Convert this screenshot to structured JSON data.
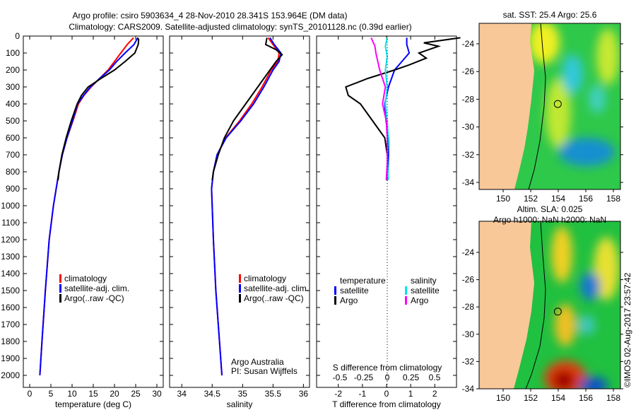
{
  "title_line1": "Argo profile: csiro 5903634_4 28-Nov-2010 28.341S 153.964E (DM data)",
  "title_line2": "Climatology: CARS2009. Satellite-adjusted climatology: synTS_20101128.nc (0.39d earlier)",
  "colors": {
    "climatology": "#ff0000",
    "satellite": "#0000ff",
    "argo": "#000000",
    "sal_satellite": "#00e5ee",
    "sal_argo": "#ff00ff",
    "land": "#f9c898"
  },
  "chart_data": [
    {
      "type": "line",
      "xlabel": "temperature (deg C)",
      "ylabel": "",
      "xlim": [
        -1.5,
        31.5
      ],
      "ylim": [
        2000,
        0
      ],
      "xticks": [
        0,
        5,
        10,
        15,
        20,
        25,
        30
      ],
      "yticks": [
        0,
        100,
        200,
        300,
        400,
        500,
        600,
        700,
        800,
        900,
        1000,
        1100,
        1200,
        1300,
        1400,
        1500,
        1600,
        1700,
        1800,
        1900,
        2000
      ],
      "legend": [
        "climatology",
        "satellite-adj. clim.",
        "Argo(..raw -QC)"
      ],
      "series": [
        {
          "name": "climatology",
          "color": "#ff0000",
          "points": [
            [
              24.5,
              10
            ],
            [
              23,
              50
            ],
            [
              21.5,
              100
            ],
            [
              20,
              150
            ],
            [
              18.5,
              200
            ],
            [
              16.5,
              250
            ],
            [
              14.5,
              300
            ],
            [
              12.8,
              350
            ],
            [
              11.5,
              400
            ],
            [
              10.2,
              500
            ],
            [
              8.8,
              600
            ],
            [
              7.7,
              700
            ],
            [
              6.9,
              800
            ],
            [
              5.6,
              1000
            ],
            [
              4.6,
              1200
            ],
            [
              3.7,
              1500
            ],
            [
              2.9,
              1800
            ],
            [
              2.4,
              2000
            ]
          ]
        },
        {
          "name": "satellite-adj. clim.",
          "color": "#0000ff",
          "points": [
            [
              25.5,
              10
            ],
            [
              24.6,
              50
            ],
            [
              22.5,
              100
            ],
            [
              20.5,
              150
            ],
            [
              18.8,
              200
            ],
            [
              16.5,
              250
            ],
            [
              14.3,
              300
            ],
            [
              12.7,
              350
            ],
            [
              11.3,
              400
            ],
            [
              10.1,
              500
            ],
            [
              8.8,
              600
            ],
            [
              7.7,
              700
            ],
            [
              6.9,
              800
            ],
            [
              5.6,
              1000
            ],
            [
              4.6,
              1200
            ],
            [
              3.7,
              1500
            ],
            [
              2.9,
              1800
            ],
            [
              2.4,
              2000
            ]
          ]
        },
        {
          "name": "Argo(..raw -QC)",
          "color": "#000000",
          "points": [
            [
              25.4,
              10
            ],
            [
              25.7,
              20
            ],
            [
              25.6,
              50
            ],
            [
              24.8,
              100
            ],
            [
              22.5,
              150
            ],
            [
              20,
              200
            ],
            [
              16.8,
              250
            ],
            [
              13.8,
              300
            ],
            [
              12.2,
              350
            ],
            [
              11.2,
              400
            ],
            [
              9.8,
              500
            ],
            [
              8.6,
              600
            ],
            [
              7.6,
              700
            ],
            [
              6.9,
              800
            ],
            [
              6.7,
              850
            ]
          ]
        }
      ]
    },
    {
      "type": "line",
      "xlabel": "salinity",
      "xlim": [
        33.8,
        36.1
      ],
      "ylim": [
        2000,
        0
      ],
      "xticks": [
        34,
        34.5,
        35,
        35.5,
        36
      ],
      "legend": [
        "climatology",
        "satellite-adj. clim.",
        "Argo(..raw -QC)"
      ],
      "annotation": [
        "Argo Australia",
        "PI: Susan Wijffels"
      ],
      "series": [
        {
          "name": "climatology",
          "color": "#ff0000",
          "points": [
            [
              35.42,
              10
            ],
            [
              35.5,
              50
            ],
            [
              35.6,
              100
            ],
            [
              35.58,
              150
            ],
            [
              35.47,
              200
            ],
            [
              35.32,
              300
            ],
            [
              35.15,
              400
            ],
            [
              34.95,
              500
            ],
            [
              34.72,
              600
            ],
            [
              34.58,
              700
            ],
            [
              34.52,
              800
            ],
            [
              34.49,
              900
            ],
            [
              34.5,
              1000
            ],
            [
              34.52,
              1200
            ],
            [
              34.56,
              1500
            ],
            [
              34.62,
              1800
            ],
            [
              34.66,
              2000
            ]
          ]
        },
        {
          "name": "satellite-adj. clim.",
          "color": "#0000ff",
          "points": [
            [
              35.45,
              10
            ],
            [
              35.52,
              50
            ],
            [
              35.63,
              100
            ],
            [
              35.6,
              150
            ],
            [
              35.5,
              200
            ],
            [
              35.35,
              300
            ],
            [
              35.18,
              400
            ],
            [
              34.97,
              500
            ],
            [
              34.73,
              600
            ],
            [
              34.58,
              700
            ],
            [
              34.52,
              800
            ],
            [
              34.49,
              900
            ],
            [
              34.5,
              1000
            ],
            [
              34.52,
              1200
            ],
            [
              34.56,
              1500
            ],
            [
              34.62,
              1800
            ],
            [
              34.66,
              2000
            ]
          ]
        },
        {
          "name": "Argo(..raw -QC)",
          "color": "#000000",
          "points": [
            [
              35.4,
              10
            ],
            [
              35.38,
              50
            ],
            [
              35.55,
              80
            ],
            [
              35.65,
              110
            ],
            [
              35.55,
              150
            ],
            [
              35.45,
              200
            ],
            [
              35.25,
              300
            ],
            [
              35.05,
              400
            ],
            [
              34.85,
              500
            ],
            [
              34.7,
              600
            ],
            [
              34.6,
              700
            ],
            [
              34.52,
              800
            ],
            [
              34.5,
              850
            ]
          ]
        }
      ]
    },
    {
      "type": "line",
      "xlabel": "T difference from climatology",
      "xlabel2": "S difference from climatology",
      "xlim": [
        -2.9,
        2.9
      ],
      "ylim": [
        2000,
        0
      ],
      "xticks": [
        -2,
        -1,
        0,
        1,
        2
      ],
      "xticks2": [
        -0.5,
        -0.25,
        0,
        0.25,
        0.5
      ],
      "legend_groups": [
        {
          "title": "temperature",
          "items": [
            "satellite",
            "Argo"
          ]
        },
        {
          "title": "salinity",
          "items": [
            "satellite",
            "Argo"
          ]
        }
      ],
      "series": [
        {
          "name": "T satellite",
          "axis": "T",
          "color": "#0000ff",
          "points": [
            [
              0.8,
              10
            ],
            [
              0.8,
              50
            ],
            [
              0.9,
              100
            ],
            [
              0.6,
              150
            ],
            [
              0.3,
              200
            ],
            [
              0.05,
              300
            ],
            [
              -0.1,
              400
            ],
            [
              -0.05,
              500
            ],
            [
              0.05,
              600
            ],
            [
              0.05,
              700
            ],
            [
              0.02,
              850
            ]
          ]
        },
        {
          "name": "T Argo",
          "axis": "T",
          "color": "#000000",
          "points": [
            [
              3,
              10
            ],
            [
              1.5,
              40
            ],
            [
              2.1,
              60
            ],
            [
              1.3,
              100
            ],
            [
              1.6,
              130
            ],
            [
              0.9,
              170
            ],
            [
              0.3,
              200
            ],
            [
              -0.8,
              250
            ],
            [
              -1.7,
              300
            ],
            [
              -1.6,
              350
            ],
            [
              -1.1,
              400
            ],
            [
              -0.6,
              500
            ],
            [
              -0.1,
              600
            ],
            [
              0,
              700
            ],
            [
              0,
              850
            ]
          ]
        },
        {
          "name": "S satellite",
          "axis": "S",
          "color": "#00e5ee",
          "points": [
            [
              0,
              10
            ],
            [
              -0.02,
              60
            ],
            [
              0,
              120
            ],
            [
              -0.02,
              200
            ],
            [
              0,
              300
            ],
            [
              -0.02,
              400
            ],
            [
              0,
              500
            ],
            [
              0.01,
              600
            ],
            [
              0,
              700
            ],
            [
              0.01,
              850
            ]
          ]
        },
        {
          "name": "S Argo",
          "axis": "S",
          "color": "#ff00ff",
          "points": [
            [
              -0.17,
              10
            ],
            [
              -0.13,
              60
            ],
            [
              -0.12,
              100
            ],
            [
              -0.08,
              200
            ],
            [
              -0.02,
              300
            ],
            [
              -0.05,
              400
            ],
            [
              -0.01,
              500
            ],
            [
              0,
              600
            ],
            [
              0,
              750
            ],
            [
              -0.01,
              850
            ]
          ]
        }
      ]
    },
    {
      "type": "heatmap",
      "title": "sat. SST: 25.4 Argo: 25.6",
      "xlim": [
        148.3,
        159.7
      ],
      "ylim": [
        -34.3,
        -22.5
      ],
      "xticks": [
        150,
        152,
        154,
        156,
        158
      ],
      "yticks": [
        -24,
        -26,
        -28,
        -30,
        -32,
        -34
      ],
      "marker": [
        153.964,
        -28.341
      ]
    },
    {
      "type": "heatmap",
      "title_line1": "Altim. SLA: 0.025",
      "title_line2": "Argo h1000: NaN h2000: NaN",
      "xlim": [
        148.3,
        159.7
      ],
      "ylim": [
        -34.3,
        -22.3
      ],
      "xticks": [
        150,
        152,
        154,
        156,
        158
      ],
      "yticks": [
        -24,
        -26,
        -28,
        -30,
        -32,
        -34
      ],
      "marker": [
        153.964,
        -28.341
      ]
    }
  ],
  "credit": "©IMOS 02-Aug-2017 23:57:42"
}
